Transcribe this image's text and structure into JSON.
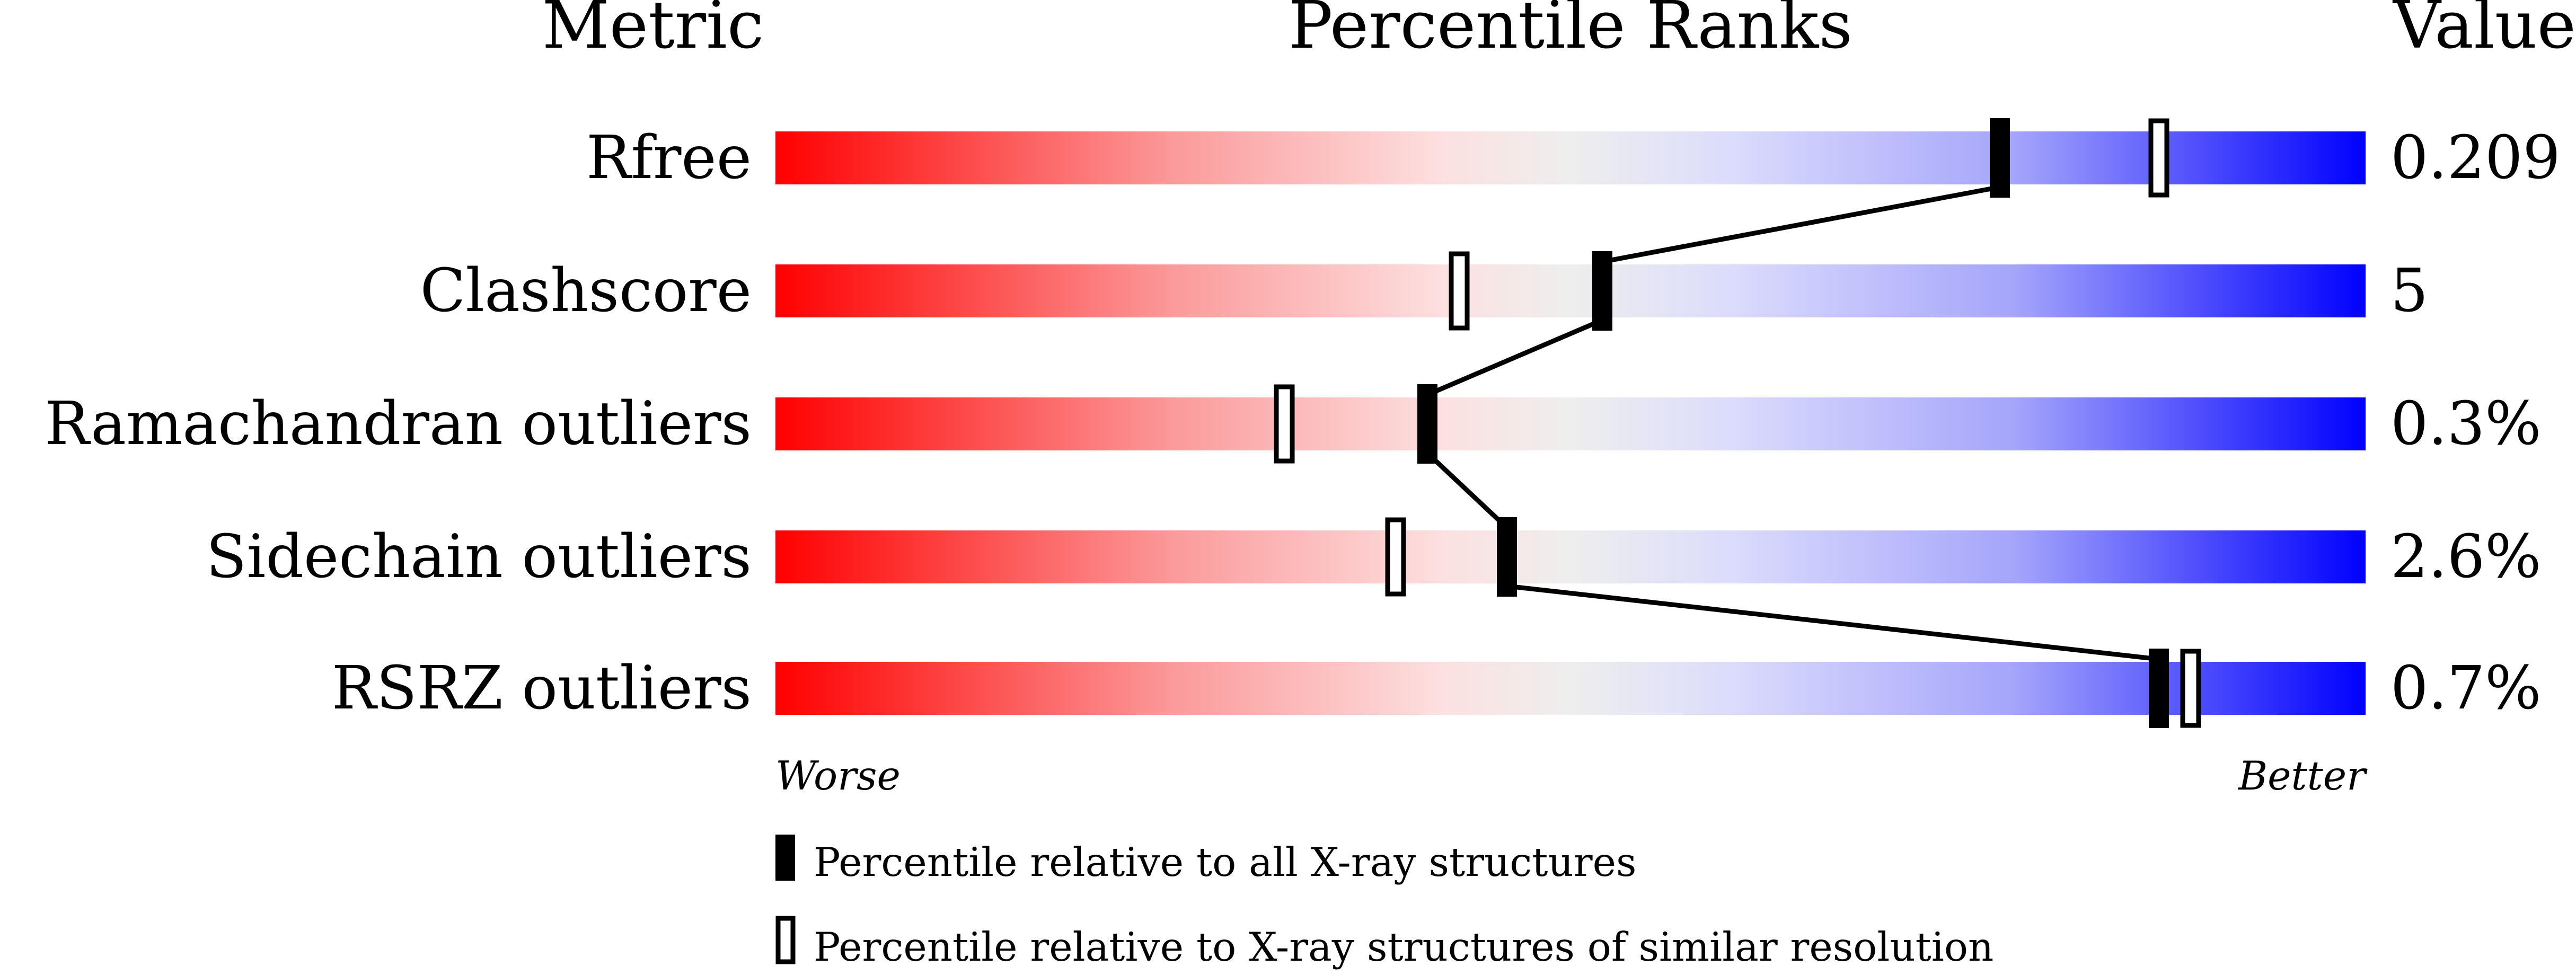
{
  "chart_data": {
    "type": "percentile-ranks",
    "headers": {
      "metric": "Metric",
      "ranks": "Percentile Ranks",
      "value": "Value"
    },
    "xlim": [
      0,
      100
    ],
    "axis_labels": {
      "left": "Worse",
      "right": "Better"
    },
    "rows": [
      {
        "metric": "Rfree",
        "value": "0.209",
        "percentile_all": 77,
        "percentile_similar": 87
      },
      {
        "metric": "Clashscore",
        "value": "5",
        "percentile_all": 52,
        "percentile_similar": 43
      },
      {
        "metric": "Ramachandran outliers",
        "value": "0.3%",
        "percentile_all": 41,
        "percentile_similar": 32
      },
      {
        "metric": "Sidechain outliers",
        "value": "2.6%",
        "percentile_all": 46,
        "percentile_similar": 39
      },
      {
        "metric": "RSRZ outliers",
        "value": "0.7%",
        "percentile_all": 87,
        "percentile_similar": 89
      }
    ],
    "legend": [
      {
        "marker": "filled",
        "label": "Percentile relative to all X-ray structures"
      },
      {
        "marker": "open",
        "label": "Percentile relative to X-ray structures of similar resolution"
      }
    ],
    "colors": {
      "worse": "#ff0000",
      "middle": "#eeeeee",
      "better": "#0000ff",
      "marker": "#000000"
    }
  }
}
